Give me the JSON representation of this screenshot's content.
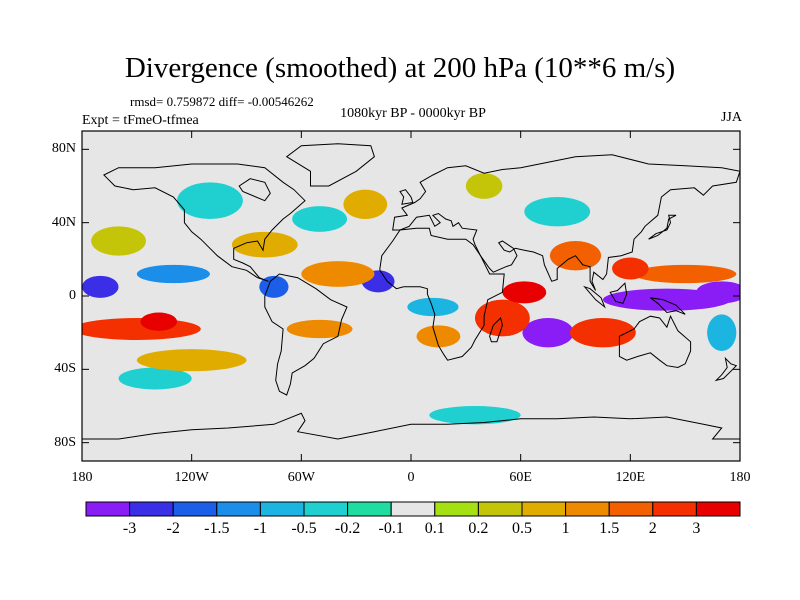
{
  "title": "Divergence (smoothed) at 200 hPa (10**6 m/s)",
  "stats": "rmsd= 0.759872 diff= -0.00546262",
  "period": "1080kyr BP - 0000kyr BP",
  "experiment": "Expt = tFmeO-tfmea",
  "season": "JJA",
  "map_data": {
    "projection": "cylindrical equidistant",
    "lon_range": [
      -180,
      180
    ],
    "lat_range": [
      -90,
      90
    ],
    "y_ticks": [
      {
        "lat": 80,
        "label": "80N"
      },
      {
        "lat": 40,
        "label": "40N"
      },
      {
        "lat": 0,
        "label": "0"
      },
      {
        "lat": -40,
        "label": "40S"
      },
      {
        "lat": -80,
        "label": "80S"
      }
    ],
    "x_ticks": [
      {
        "lon": -180,
        "label": "180"
      },
      {
        "lon": -120,
        "label": "120W"
      },
      {
        "lon": -60,
        "label": "60W"
      },
      {
        "lon": 0,
        "label": "0"
      },
      {
        "lon": 60,
        "label": "60E"
      },
      {
        "lon": 120,
        "label": "120E"
      },
      {
        "lon": 180,
        "label": "180"
      }
    ],
    "anomalies": [
      {
        "lon": 140,
        "lat": -2,
        "rlon": 35,
        "rlat": 6,
        "level": -3
      },
      {
        "lon": 170,
        "lat": 2,
        "rlon": 14,
        "rlat": 6,
        "level": -3
      },
      {
        "lon": 75,
        "lat": -20,
        "rlon": 14,
        "rlat": 8,
        "level": -3
      },
      {
        "lon": -170,
        "lat": 5,
        "rlon": 10,
        "rlat": 6,
        "level": -2
      },
      {
        "lon": -18,
        "lat": 8,
        "rlon": 9,
        "rlat": 6,
        "level": -2
      },
      {
        "lon": -75,
        "lat": 5,
        "rlon": 8,
        "rlat": 6,
        "level": -1.5
      },
      {
        "lon": -130,
        "lat": 12,
        "rlon": 20,
        "rlat": 5,
        "level": -1
      },
      {
        "lon": 12,
        "lat": -6,
        "rlon": 14,
        "rlat": 5,
        "level": -0.5
      },
      {
        "lon": 170,
        "lat": -20,
        "rlon": 8,
        "rlat": 10,
        "level": -0.5
      },
      {
        "lon": -110,
        "lat": 52,
        "rlon": 18,
        "rlat": 10,
        "level": -0.2
      },
      {
        "lon": -50,
        "lat": 42,
        "rlon": 15,
        "rlat": 7,
        "level": -0.2
      },
      {
        "lon": 80,
        "lat": 46,
        "rlon": 18,
        "rlat": 8,
        "level": -0.2
      },
      {
        "lon": 35,
        "lat": -65,
        "rlon": 25,
        "rlat": 5,
        "level": -0.2
      },
      {
        "lon": -140,
        "lat": -45,
        "rlon": 20,
        "rlat": 6,
        "level": -0.2
      },
      {
        "lon": -150,
        "lat": -18,
        "rlon": 35,
        "rlat": 6,
        "level": 2
      },
      {
        "lon": -138,
        "lat": -14,
        "rlon": 10,
        "rlat": 5,
        "level": 3
      },
      {
        "lon": -50,
        "lat": -18,
        "rlon": 18,
        "rlat": 5,
        "level": 1
      },
      {
        "lon": 50,
        "lat": -12,
        "rlon": 15,
        "rlat": 10,
        "level": 2
      },
      {
        "lon": 62,
        "lat": 2,
        "rlon": 12,
        "rlat": 6,
        "level": 3
      },
      {
        "lon": 105,
        "lat": -20,
        "rlon": 18,
        "rlat": 8,
        "level": 2
      },
      {
        "lon": 150,
        "lat": 12,
        "rlon": 28,
        "rlat": 5,
        "level": 1.5
      },
      {
        "lon": 120,
        "lat": 15,
        "rlon": 10,
        "rlat": 6,
        "level": 2
      },
      {
        "lon": -40,
        "lat": 12,
        "rlon": 20,
        "rlat": 7,
        "level": 1
      },
      {
        "lon": 15,
        "lat": -22,
        "rlon": 12,
        "rlat": 6,
        "level": 1
      },
      {
        "lon": -120,
        "lat": -35,
        "rlon": 30,
        "rlat": 6,
        "level": 0.5
      },
      {
        "lon": -25,
        "lat": 50,
        "rlon": 12,
        "rlat": 8,
        "level": 0.5
      },
      {
        "lon": 40,
        "lat": 60,
        "rlon": 10,
        "rlat": 7,
        "level": 0.2
      },
      {
        "lon": 90,
        "lat": 22,
        "rlon": 14,
        "rlat": 8,
        "level": 1.5
      },
      {
        "lon": -80,
        "lat": 28,
        "rlon": 18,
        "rlat": 7,
        "level": 0.5
      },
      {
        "lon": -160,
        "lat": 30,
        "rlon": 15,
        "rlat": 8,
        "level": 0.2
      }
    ]
  },
  "colorbar": {
    "colors": [
      "#8a1cf5",
      "#3a2ee6",
      "#1c5ee8",
      "#1a8ee8",
      "#1cb4e0",
      "#20d0d0",
      "#1fdca0",
      "#e6e6e6",
      "#a4e012",
      "#c4c408",
      "#e0ac00",
      "#ee8a00",
      "#f26000",
      "#f43000",
      "#e80000"
    ],
    "labels": [
      "-3",
      "-2",
      "-1.5",
      "-1",
      "-0.5",
      "-0.2",
      "-0.1",
      "0.1",
      "0.2",
      "0.5",
      "1",
      "1.5",
      "2",
      "3"
    ],
    "levels": [
      -3,
      -2,
      -1.5,
      -1,
      -0.5,
      -0.2,
      -0.1,
      0.1,
      0.2,
      0.5,
      1,
      1.5,
      2,
      3
    ]
  }
}
